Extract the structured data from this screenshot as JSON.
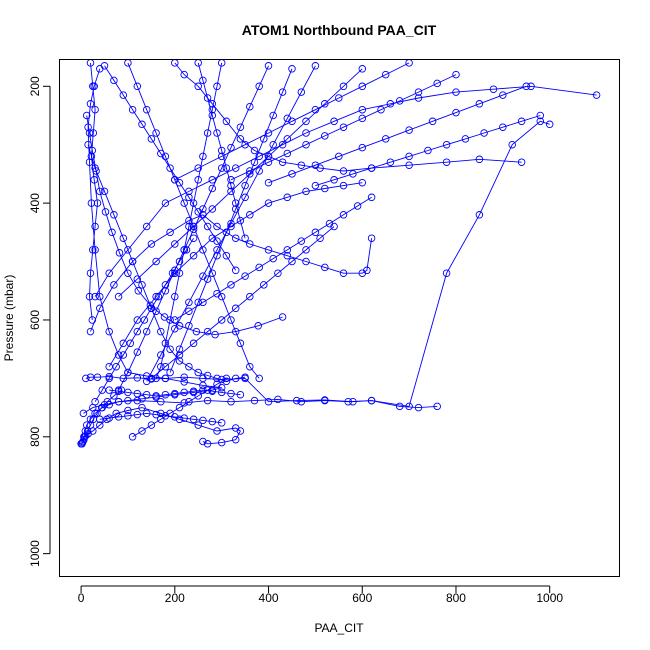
{
  "chart_data": {
    "type": "scatter",
    "title": "ATOM1 Northbound PAA_CIT",
    "xlabel": "PAA_CIT",
    "ylabel": "Pressure (mbar)",
    "xlim": [
      -45,
      1150
    ],
    "ylim": [
      1040,
      155
    ],
    "y_reversed": true,
    "x_ticks": [
      0,
      200,
      400,
      600,
      800,
      1000
    ],
    "y_ticks": [
      200,
      400,
      600,
      800,
      1000
    ],
    "grid": false,
    "series_color": "#0000ff",
    "marker": "open-circle",
    "connected": true,
    "series": [
      {
        "x": [
          2,
          4,
          6,
          9,
          12,
          20,
          30,
          45,
          60,
          80,
          100,
          130,
          160,
          200,
          240,
          280,
          300,
          260,
          220,
          180,
          140,
          100,
          80,
          60,
          40,
          30,
          22,
          18,
          15,
          20,
          28,
          40
        ],
        "y": [
          812,
          808,
          800,
          790,
          780,
          770,
          760,
          750,
          745,
          740,
          738,
          735,
          732,
          728,
          724,
          720,
          716,
          712,
          706,
          700,
          696,
          690,
          660,
          620,
          560,
          480,
          400,
          330,
          270,
          230,
          200,
          170
        ]
      },
      {
        "x": [
          10,
          20,
          35,
          60,
          90,
          120,
          150,
          180,
          220,
          260,
          300,
          350,
          400,
          460,
          520,
          580,
          620,
          700,
          780,
          850,
          920,
          980,
          1000
        ],
        "y": [
          700,
          698,
          698,
          697,
          700,
          699,
          701,
          700,
          698,
          700,
          702,
          700,
          740,
          738,
          737,
          740,
          738,
          748,
          520,
          420,
          300,
          260,
          265
        ]
      },
      {
        "x": [
          5,
          25,
          50,
          80,
          120,
          170,
          220,
          270,
          320,
          370,
          420,
          470,
          520,
          570,
          620,
          680,
          720,
          760
        ],
        "y": [
          760,
          750,
          745,
          740,
          738,
          740,
          742,
          738,
          740,
          738,
          736,
          740,
          738,
          740,
          738,
          748,
          750,
          748
        ]
      },
      {
        "x": [
          30,
          60,
          100,
          140,
          180,
          230,
          280,
          330,
          380,
          430,
          480,
          540,
          600,
          660,
          720,
          800,
          880,
          960,
          1100
        ],
        "y": [
          560,
          520,
          480,
          440,
          400,
          380,
          360,
          340,
          320,
          300,
          280,
          260,
          240,
          230,
          220,
          210,
          205,
          200,
          215
        ]
      },
      {
        "x": [
          20,
          40,
          70,
          110,
          150,
          190,
          230,
          260,
          290,
          330,
          360,
          400,
          440,
          480,
          520,
          560,
          600,
          610,
          620
        ],
        "y": [
          620,
          580,
          540,
          500,
          470,
          450,
          430,
          420,
          440,
          460,
          470,
          480,
          490,
          500,
          510,
          520,
          520,
          515,
          460
        ]
      },
      {
        "x": [
          8,
          15,
          25,
          40,
          55,
          75,
          100,
          130,
          170,
          210,
          250,
          290,
          330,
          340,
          330,
          300,
          270,
          260
        ],
        "y": [
          800,
          795,
          790,
          780,
          770,
          760,
          755,
          750,
          760,
          770,
          780,
          790,
          785,
          790,
          805,
          810,
          812,
          808
        ]
      },
      {
        "x": [
          15,
          30,
          50,
          70,
          90,
          110,
          130,
          150,
          170,
          190,
          210,
          230,
          250,
          270,
          290,
          310,
          330,
          350
        ],
        "y": [
          300,
          340,
          380,
          420,
          460,
          500,
          540,
          580,
          620,
          650,
          670,
          680,
          690,
          695,
          700,
          705,
          700,
          698
        ]
      },
      {
        "x": [
          200,
          220,
          250,
          280,
          310,
          340,
          370,
          400,
          430,
          470,
          510,
          560,
          620,
          700,
          780,
          850,
          940
        ],
        "y": [
          160,
          180,
          200,
          230,
          260,
          290,
          310,
          320,
          330,
          335,
          340,
          345,
          340,
          335,
          330,
          325,
          330
        ]
      },
      {
        "x": [
          60,
          90,
          120,
          160,
          200,
          240,
          280,
          320,
          360,
          400,
          440,
          480,
          520,
          560,
          600
        ],
        "y": [
          680,
          640,
          600,
          560,
          520,
          490,
          460,
          440,
          420,
          400,
          390,
          380,
          375,
          370,
          365
        ]
      },
      {
        "x": [
          12,
          18,
          24,
          32,
          40,
          52,
          66,
          82,
          100,
          122,
          148,
          178,
          210,
          246,
          286,
          330,
          378,
          430
        ],
        "y": [
          250,
          280,
          310,
          345,
          380,
          415,
          450,
          485,
          520,
          550,
          575,
          595,
          610,
          620,
          625,
          620,
          610,
          595
        ]
      },
      {
        "x": [
          100,
          120,
          140,
          160,
          180,
          200,
          220,
          240,
          260,
          280,
          300,
          320,
          340,
          360,
          380
        ],
        "y": [
          160,
          200,
          240,
          280,
          320,
          360,
          400,
          440,
          480,
          520,
          560,
          600,
          640,
          680,
          700
        ]
      },
      {
        "x": [
          300,
          290,
          280,
          270,
          260,
          250,
          240,
          230,
          220,
          210,
          200,
          190,
          180,
          170,
          160
        ],
        "y": [
          160,
          200,
          240,
          280,
          320,
          360,
          400,
          440,
          480,
          520,
          560,
          600,
          640,
          680,
          700
        ]
      },
      {
        "x": [
          50,
          70,
          90,
          110,
          130,
          150,
          170,
          190,
          210,
          230,
          250,
          270,
          290,
          310,
          330
        ],
        "y": [
          165,
          190,
          215,
          240,
          265,
          290,
          315,
          340,
          365,
          390,
          415,
          440,
          465,
          490,
          515
        ]
      },
      {
        "x": [
          400,
          380,
          360,
          340,
          320,
          300,
          280,
          260,
          240,
          220,
          200,
          180,
          160,
          140,
          120,
          100,
          80
        ],
        "y": [
          165,
          200,
          235,
          270,
          305,
          340,
          375,
          410,
          445,
          480,
          515,
          550,
          585,
          620,
          655,
          690,
          720
        ]
      },
      {
        "x": [
          500,
          470,
          440,
          410,
          380,
          350,
          320,
          290,
          260,
          230,
          200,
          170,
          140
        ],
        "y": [
          165,
          210,
          255,
          300,
          345,
          390,
          435,
          480,
          525,
          570,
          615,
          660,
          705
        ]
      },
      {
        "x": [
          150,
          180,
          210,
          240,
          270,
          300,
          330,
          360,
          390,
          420,
          450,
          480,
          510,
          540
        ],
        "y": [
          700,
          680,
          660,
          640,
          620,
          600,
          580,
          560,
          540,
          520,
          500,
          480,
          460,
          440
        ]
      },
      {
        "x": [
          30,
          45,
          60,
          75,
          90,
          105,
          120,
          135,
          150,
          165,
          180,
          195,
          210,
          225,
          240
        ],
        "y": [
          740,
          720,
          700,
          680,
          660,
          640,
          620,
          600,
          580,
          560,
          540,
          520,
          500,
          480,
          460
        ]
      },
      {
        "x": [
          600,
          560,
          520,
          480,
          440,
          400,
          360,
          320,
          280,
          240,
          200,
          160,
          120,
          80
        ],
        "y": [
          170,
          200,
          230,
          260,
          290,
          320,
          350,
          380,
          410,
          440,
          470,
          500,
          530,
          560
        ]
      },
      {
        "x": [
          700,
          650,
          600,
          550,
          500,
          450,
          400,
          350,
          300,
          250,
          200
        ],
        "y": [
          160,
          180,
          200,
          220,
          240,
          260,
          280,
          300,
          320,
          340,
          360
        ]
      },
      {
        "x": [
          950,
          900,
          850,
          800,
          750,
          700,
          650,
          600,
          550,
          500,
          450,
          400
        ],
        "y": [
          200,
          215,
          230,
          245,
          260,
          275,
          290,
          305,
          320,
          335,
          350,
          365
        ]
      },
      {
        "x": [
          20,
          25,
          30,
          26,
          22,
          28,
          35,
          30,
          25,
          20,
          18,
          24
        ],
        "y": [
          160,
          200,
          240,
          280,
          320,
          360,
          400,
          440,
          480,
          520,
          560,
          600
        ]
      },
      {
        "x": [
          40,
          60,
          80,
          100,
          120,
          140,
          160,
          180,
          200,
          220,
          240,
          260,
          280,
          300
        ],
        "y": [
          770,
          768,
          766,
          764,
          762,
          760,
          762,
          764,
          766,
          768,
          770,
          772,
          774,
          776
        ]
      },
      {
        "x": [
          60,
          80,
          100,
          120,
          140,
          160,
          180,
          200,
          220,
          240,
          260,
          280,
          300,
          320,
          340
        ],
        "y": [
          720,
          722,
          724,
          726,
          728,
          730,
          728,
          726,
          724,
          722,
          720,
          722,
          724,
          726,
          728
        ]
      },
      {
        "x": [
          200,
          230,
          260,
          290,
          320,
          350,
          380,
          410,
          440,
          470,
          500,
          530,
          560,
          590,
          620
        ],
        "y": [
          600,
          585,
          570,
          555,
          540,
          525,
          510,
          495,
          480,
          465,
          450,
          435,
          420,
          405,
          390
        ]
      },
      {
        "x": [
          800,
          760,
          720,
          680,
          640,
          600,
          560,
          520,
          480,
          440,
          400,
          360,
          320
        ],
        "y": [
          180,
          195,
          210,
          225,
          240,
          255,
          270,
          285,
          300,
          315,
          330,
          345,
          360
        ]
      },
      {
        "x": [
          980,
          940,
          900,
          860,
          820,
          780,
          740,
          700,
          660,
          620,
          580,
          540,
          500
        ],
        "y": [
          250,
          260,
          270,
          280,
          290,
          300,
          310,
          320,
          330,
          340,
          350,
          360,
          370
        ]
      },
      {
        "x": [
          0,
          3,
          6,
          10,
          14,
          20,
          26,
          34,
          44,
          56,
          70,
          86
        ],
        "y": [
          812,
          810,
          805,
          798,
          790,
          780,
          770,
          760,
          750,
          740,
          730,
          720
        ]
      },
      {
        "x": [
          110,
          130,
          150,
          170,
          190,
          210,
          230,
          250,
          270,
          290,
          310
        ],
        "y": [
          800,
          790,
          780,
          770,
          760,
          750,
          740,
          730,
          720,
          710,
          700
        ]
      },
      {
        "x": [
          250,
          260,
          270,
          280,
          290,
          300,
          310,
          320,
          330,
          340,
          350
        ],
        "y": [
          160,
          190,
          220,
          250,
          280,
          310,
          340,
          370,
          400,
          430,
          460
        ]
      },
      {
        "x": [
          450,
          430,
          410,
          390,
          370,
          350,
          330,
          310,
          290,
          270,
          250,
          230,
          210,
          190
        ],
        "y": [
          170,
          210,
          250,
          290,
          330,
          370,
          410,
          450,
          490,
          530,
          570,
          610,
          650,
          690
        ]
      }
    ]
  }
}
